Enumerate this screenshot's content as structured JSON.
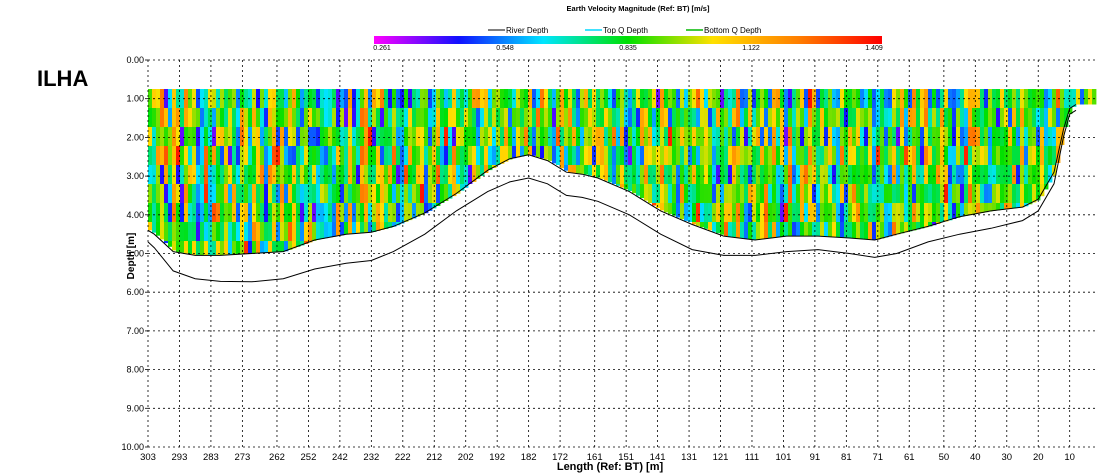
{
  "chart_data": {
    "type": "heatmap",
    "left_label": "ILHA",
    "title": "Earth Velocity Magnitude (Ref: BT) [m/s]",
    "xlabel": "Length (Ref: BT) [m]",
    "ylabel": "Depth [m]",
    "xlim": [
      303,
      1
    ],
    "ylim": [
      0,
      10
    ],
    "grid": true,
    "legend": {
      "placement": "top-center",
      "entries": [
        "River Depth",
        "Top Q Depth",
        "Bottom Q Depth"
      ]
    },
    "colorbar": {
      "ticks": [
        "0.261",
        "0.548",
        "0.835",
        "1.122",
        "1.409"
      ],
      "range": [
        0.261,
        1.409
      ],
      "colors": [
        "#ff00ff",
        "#1010ff",
        "#00e5ff",
        "#00e000",
        "#ffe000",
        "#ff8000",
        "#ff0000"
      ]
    },
    "x_ticks": [
      "303",
      "293",
      "283",
      "273",
      "262",
      "252",
      "242",
      "232",
      "222",
      "212",
      "202",
      "192",
      "182",
      "172",
      "161",
      "151",
      "141",
      "131",
      "121",
      "111",
      "101",
      "91",
      "81",
      "71",
      "61",
      "50",
      "40",
      "30",
      "20",
      "10"
    ],
    "y_ticks": [
      "0.00",
      "1.00",
      "2.00",
      "3.00",
      "4.00",
      "5.00",
      "6.00",
      "7.00",
      "8.00",
      "9.00",
      "10.00"
    ],
    "series": [
      {
        "name": "River Depth",
        "x": [
          303,
          301,
          295,
          288,
          280,
          270,
          260,
          250,
          240,
          232,
          225,
          215,
          205,
          195,
          188,
          182,
          176,
          170,
          165,
          160,
          150,
          140,
          130,
          120,
          110,
          100,
          90,
          80,
          72,
          65,
          55,
          45,
          35,
          25,
          20,
          15,
          12,
          10,
          8
        ],
        "y": [
          4.7,
          4.85,
          5.45,
          5.65,
          5.72,
          5.73,
          5.65,
          5.4,
          5.25,
          5.18,
          4.95,
          4.5,
          3.9,
          3.4,
          3.15,
          3.05,
          3.2,
          3.5,
          3.55,
          3.65,
          4.0,
          4.5,
          4.9,
          5.05,
          5.05,
          4.95,
          4.9,
          5.0,
          5.1,
          5.0,
          4.7,
          4.5,
          4.35,
          4.15,
          3.9,
          3.2,
          2.0,
          1.4,
          1.3
        ]
      },
      {
        "name": "Bottom Q Depth",
        "x": [
          303,
          301,
          295,
          288,
          280,
          270,
          260,
          250,
          240,
          232,
          225,
          215,
          205,
          195,
          188,
          182,
          176,
          170,
          165,
          160,
          150,
          140,
          130,
          120,
          110,
          100,
          90,
          80,
          72,
          65,
          55,
          45,
          35,
          25,
          20,
          15,
          12,
          10,
          8
        ],
        "y": [
          4.4,
          4.5,
          4.95,
          5.05,
          5.05,
          5.0,
          4.95,
          4.65,
          4.5,
          4.45,
          4.3,
          3.95,
          3.45,
          2.85,
          2.55,
          2.45,
          2.6,
          2.9,
          2.95,
          3.05,
          3.4,
          3.9,
          4.25,
          4.55,
          4.65,
          4.55,
          4.55,
          4.6,
          4.65,
          4.5,
          4.3,
          4.05,
          3.9,
          3.8,
          3.6,
          2.9,
          1.8,
          1.25,
          1.15
        ]
      },
      {
        "name": "Top Q Depth",
        "x": [
          303,
          1
        ],
        "y": [
          0.75,
          0.75
        ]
      }
    ]
  }
}
